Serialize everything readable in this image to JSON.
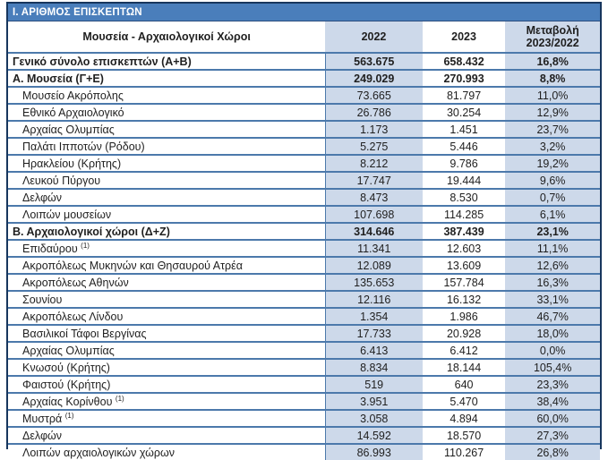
{
  "section_title": "Ι. ΑΡΙΘΜΟΣ ΕΠΙΣΚΕΠΤΩΝ",
  "table": {
    "header": {
      "name": "Μουσεία - Αρχαιολογικοί Χώροι",
      "y2022": "2022",
      "y2023": "2023",
      "change_line1": "Μεταβολή",
      "change_line2": "2023/2022"
    },
    "rows": [
      {
        "label": "Γενικό σύνολο επισκεπτών (Α+Β)",
        "v2022": "563.675",
        "v2023": "658.432",
        "change": "16,8%",
        "kind": "total"
      },
      {
        "label": "Α. Μουσεία (Γ+Ε)",
        "v2022": "249.029",
        "v2023": "270.993",
        "change": "8,8%",
        "kind": "section"
      },
      {
        "label": "Μουσείο Ακρόπολης",
        "v2022": "73.665",
        "v2023": "81.797",
        "change": "11,0%",
        "kind": "item"
      },
      {
        "label": "Εθνικό Αρχαιολογικό",
        "v2022": "26.786",
        "v2023": "30.254",
        "change": "12,9%",
        "kind": "item"
      },
      {
        "label": "Αρχαίας Ολυμπίας",
        "v2022": "1.173",
        "v2023": "1.451",
        "change": "23,7%",
        "kind": "item"
      },
      {
        "label": "Παλάτι Ιπποτών (Ρόδου)",
        "v2022": "5.275",
        "v2023": "5.446",
        "change": "3,2%",
        "kind": "item"
      },
      {
        "label": "Ηρακλείου (Κρήτης)",
        "v2022": "8.212",
        "v2023": "9.786",
        "change": "19,2%",
        "kind": "item"
      },
      {
        "label": "Λευκού Πύργου",
        "v2022": "17.747",
        "v2023": "19.444",
        "change": "9,6%",
        "kind": "item"
      },
      {
        "label": "Δελφών",
        "v2022": "8.473",
        "v2023": "8.530",
        "change": "0,7%",
        "kind": "item"
      },
      {
        "label": "Λοιπών μουσείων",
        "v2022": "107.698",
        "v2023": "114.285",
        "change": "6,1%",
        "kind": "item"
      },
      {
        "label": "Β. Αρχαιολογικοί χώροι (Δ+Ζ)",
        "v2022": "314.646",
        "v2023": "387.439",
        "change": "23,1%",
        "kind": "section"
      },
      {
        "label": "Επιδαύρου",
        "sup": "(1)",
        "v2022": "11.341",
        "v2023": "12.603",
        "change": "11,1%",
        "kind": "item"
      },
      {
        "label": "Ακροπόλεως Μυκηνών και Θησαυρού Ατρέα",
        "v2022": "12.089",
        "v2023": "13.609",
        "change": "12,6%",
        "kind": "item"
      },
      {
        "label": "Ακροπόλεως Αθηνών",
        "v2022": "135.653",
        "v2023": "157.784",
        "change": "16,3%",
        "kind": "item"
      },
      {
        "label": "Σουνίου",
        "v2022": "12.116",
        "v2023": "16.132",
        "change": "33,1%",
        "kind": "item"
      },
      {
        "label": "Ακροπόλεως Λίνδου",
        "v2022": "1.354",
        "v2023": "1.986",
        "change": "46,7%",
        "kind": "item"
      },
      {
        "label": "Βασιλικοί Τάφοι Βεργίνας",
        "v2022": "17.733",
        "v2023": "20.928",
        "change": "18,0%",
        "kind": "item"
      },
      {
        "label": "Αρχαίας Ολυμπίας",
        "v2022": "6.413",
        "v2023": "6.412",
        "change": "0,0%",
        "kind": "item"
      },
      {
        "label": "Κνωσού (Κρήτης)",
        "v2022": "8.834",
        "v2023": "18.144",
        "change": "105,4%",
        "kind": "item"
      },
      {
        "label": "Φαιστού (Κρήτης)",
        "v2022": "519",
        "v2023": "640",
        "change": "23,3%",
        "kind": "item"
      },
      {
        "label": "Αρχαίας Κορίνθου",
        "sup": "(1)",
        "v2022": "3.951",
        "v2023": "5.470",
        "change": "38,4%",
        "kind": "item"
      },
      {
        "label": "Μυστρά",
        "sup": "(1)",
        "v2022": "3.058",
        "v2023": "4.894",
        "change": "60,0%",
        "kind": "item"
      },
      {
        "label": "Δελφών",
        "v2022": "14.592",
        "v2023": "18.570",
        "change": "27,3%",
        "kind": "item"
      },
      {
        "label": "Λοιπών αρχαιολογικών χώρων",
        "v2022": "86.993",
        "v2023": "110.267",
        "change": "26,8%",
        "kind": "item"
      }
    ]
  },
  "colors": {
    "title_bar_bg": "#4a7ebb",
    "shaded_cell_bg": "#cdd9ea",
    "row_border": "#4c79ab",
    "outer_border": "#17365d",
    "title_text": "#ffffff",
    "text": "#1f1f1f"
  }
}
